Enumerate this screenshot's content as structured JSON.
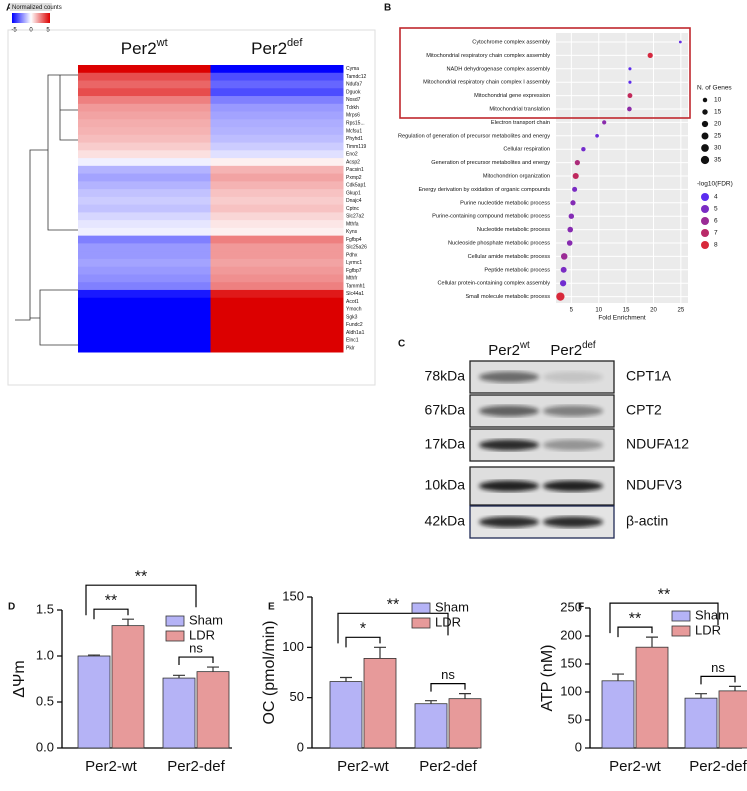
{
  "panel_labels": [
    "A",
    "B",
    "C",
    "D",
    "E",
    "F"
  ],
  "chart_data": [
    {
      "type": "heatmap",
      "colorbar": {
        "label": "Normalized counts",
        "lim": [
          -5,
          5
        ],
        "ticks": [
          -5,
          0,
          5
        ]
      },
      "columns": [
        {
          "text": "Per2",
          "sup": "wt"
        },
        {
          "text": "Per2",
          "sup": "def"
        }
      ],
      "rows": [
        "Cyma",
        "Tamdc12",
        "Ndufa7",
        "Dguok",
        "Nosd7",
        "Tdrkh",
        "Mrps6",
        "Rps15...",
        "Mcfsu1",
        "Phyhd1",
        "Timm119",
        "Eno2",
        "Acsp2",
        "Pacsin1",
        "Pxmp2",
        "Cdk5ap1",
        "Gkup1",
        "Dnajc4",
        "Cptnc",
        "Slc27a2",
        "Mthfa",
        "Kyns",
        "Fgfbp4",
        "Slc25a26",
        "Pdhx",
        "Lyrmc1",
        "Fgfbp7",
        "Mthfr",
        "Tammh1",
        "Slc44a1",
        "Acot1",
        "Ymoch",
        "Sgk3",
        "Fundc2",
        "Aldh1a1",
        "Elnc1",
        "Pklr"
      ],
      "values": [
        [
          5,
          -5
        ],
        [
          3.5,
          -3.5
        ],
        [
          3,
          -3
        ],
        [
          3.5,
          -3.5
        ],
        [
          2.5,
          -2.5
        ],
        [
          2,
          -2
        ],
        [
          1.8,
          -1.8
        ],
        [
          1.6,
          -1.6
        ],
        [
          1.5,
          -1.5
        ],
        [
          1.3,
          -1.3
        ],
        [
          1,
          -1
        ],
        [
          0.6,
          -0.6
        ],
        [
          -0.3,
          0.3
        ],
        [
          -1.5,
          1.5
        ],
        [
          -1.8,
          1.8
        ],
        [
          -1.5,
          1.5
        ],
        [
          -1.2,
          1.2
        ],
        [
          -1,
          1
        ],
        [
          -1.2,
          1.2
        ],
        [
          -0.8,
          0.8
        ],
        [
          -0.5,
          0.5
        ],
        [
          -0.3,
          0.3
        ],
        [
          -2.5,
          2.5
        ],
        [
          -2,
          2
        ],
        [
          -2,
          2
        ],
        [
          -1.8,
          1.8
        ],
        [
          -2,
          2
        ],
        [
          -2.2,
          2.2
        ],
        [
          -2.5,
          2.5
        ],
        [
          -4.5,
          4.5
        ],
        [
          -5,
          5
        ],
        [
          -5,
          5
        ],
        [
          -5,
          5
        ],
        [
          -5,
          5
        ],
        [
          -5,
          5
        ],
        [
          -5,
          5
        ],
        [
          -5,
          5
        ]
      ]
    },
    {
      "type": "dot",
      "xlabel": "Fold Enrichment",
      "xlim": [
        2.2,
        26.3
      ],
      "xticks": [
        5,
        10,
        15,
        20,
        25
      ],
      "colors": [
        "#5b2df0",
        "#d8283a"
      ],
      "categories": [
        "Cytochrome complex assembly",
        "Mitochondrial respiratory chain complex assembly",
        "NADH dehydrogenase complex assembly",
        "Mitochondrial respiratory chain complex I assembly",
        "Mitochondrial gene expression",
        "Mitochondrial translation",
        "Electron transport chain",
        "Regulation of generation of precursor metabolites and energy",
        "Cellular respiration",
        "Generation of precursor metabolites and energy",
        "Mitochondrion organization",
        "Energy derivation by oxidation of organic compounds",
        "Purine nucleotide metabolic process",
        "Purine-containing compound metabolic process",
        "Nucleotide metabolic process",
        "Nucleoside phosphate metabolic process",
        "Cellular amide metabolic process",
        "Peptide metabolic process",
        "Cellular protein-containing complex assembly",
        "Small molecule metabolic process"
      ],
      "values": [
        24.9,
        19.4,
        15.7,
        15.7,
        15.7,
        15.6,
        11,
        9.7,
        7.2,
        6.1,
        5.8,
        5.6,
        5.3,
        5,
        4.8,
        4.7,
        3.7,
        3.6,
        3.5,
        3
      ],
      "genes": [
        4,
        14,
        5,
        5,
        12,
        11,
        9,
        7,
        10,
        14,
        19,
        13,
        14,
        15,
        16,
        16,
        22,
        18,
        20,
        35
      ],
      "fdr": [
        4.3,
        7.9,
        4.1,
        4.1,
        7.3,
        5.6,
        5.5,
        4.5,
        4.8,
        6.6,
        7.2,
        5,
        5.3,
        5.3,
        5.4,
        5.4,
        6,
        5,
        4.7,
        8
      ],
      "size_legend": {
        "title": "N. of Genes",
        "values": [
          10,
          15,
          20,
          25,
          30,
          35
        ]
      },
      "color_legend": {
        "title": "-log10(FDR)",
        "values": [
          4,
          5,
          6,
          7,
          8
        ]
      }
    },
    {
      "type": "bar",
      "ylabel": "ΔΨm",
      "categories": [
        "Per2-wt",
        "Per2-def"
      ],
      "ylim": [
        0,
        1.5
      ],
      "yticks": [
        {
          "value": 0,
          "label": "0.0"
        },
        0.5,
        {
          "value": 1,
          "label": "1.0"
        },
        1.5
      ],
      "series": [
        {
          "name": "Sham",
          "color": "#b5b3f6",
          "values": [
            1,
            0.76
          ],
          "errors": [
            0.01,
            0.03
          ]
        },
        {
          "name": "LDR",
          "color": "#e79a9a",
          "values": [
            1.33,
            0.83
          ],
          "errors": [
            0.07,
            0.05
          ]
        }
      ],
      "annotations": [
        "**",
        "**",
        "ns"
      ]
    },
    {
      "type": "bar",
      "ylabel": "OC (pmol/min)",
      "categories": [
        "Per2-wt",
        "Per2-def"
      ],
      "ylim": [
        0,
        150
      ],
      "yticks": [
        0,
        50,
        100,
        150
      ],
      "series": [
        {
          "name": "Sham",
          "color": "#b5b3f6",
          "values": [
            66,
            44
          ],
          "errors": [
            4,
            3
          ]
        },
        {
          "name": "LDR",
          "color": "#e79a9a",
          "values": [
            89,
            49
          ],
          "errors": [
            11,
            5
          ]
        }
      ],
      "annotations": [
        "*",
        "**",
        "ns"
      ]
    },
    {
      "type": "bar",
      "ylabel": "ATP (nM)",
      "categories": [
        "Per2-wt",
        "Per2-def"
      ],
      "ylim": [
        0,
        250
      ],
      "yticks": [
        0,
        50,
        100,
        150,
        200,
        250
      ],
      "series": [
        {
          "name": "Sham",
          "color": "#b5b3f6",
          "values": [
            120,
            89
          ],
          "errors": [
            12,
            8
          ]
        },
        {
          "name": "LDR",
          "color": "#e79a9a",
          "values": [
            180,
            102
          ],
          "errors": [
            18,
            8
          ]
        }
      ],
      "annotations": [
        "**",
        "**",
        "ns"
      ]
    }
  ],
  "blot": {
    "columns": [
      {
        "text": "Per2",
        "sup": "wt"
      },
      {
        "text": "Per2",
        "sup": "def"
      }
    ],
    "rows": [
      {
        "kda": "78kDa",
        "protein": "CPT1A"
      },
      {
        "kda": "67kDa",
        "protein": "CPT2"
      },
      {
        "kda": "17kDa",
        "protein": "NDUFA12"
      },
      {
        "kda": "10kDa",
        "protein": "NDUFV3"
      },
      {
        "kda": "42kDa",
        "protein": "β-actin"
      }
    ]
  }
}
